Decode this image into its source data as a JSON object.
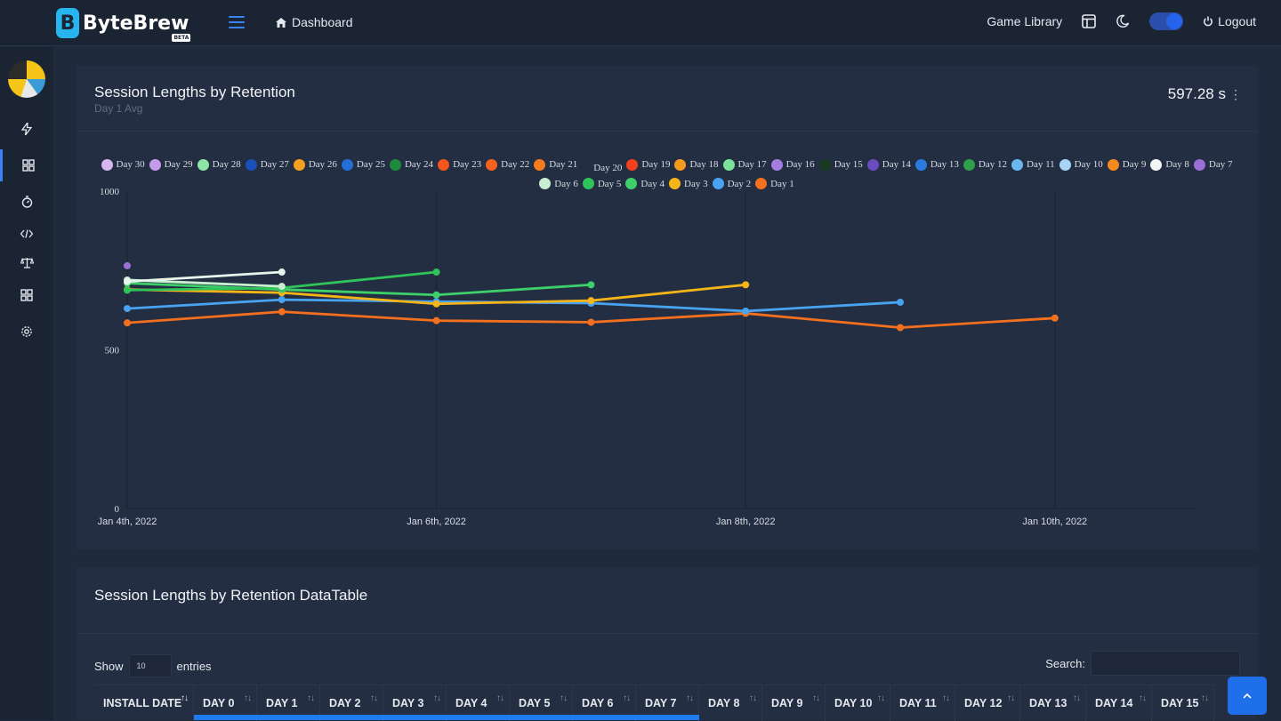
{
  "app": {
    "brand": "ByteBrew",
    "beta": "BETA"
  },
  "header": {
    "breadcrumb": "Dashboard",
    "game_library": "Game Library",
    "logout": "Logout"
  },
  "sidebar": {
    "icons": [
      "bolt-icon",
      "dashboard-icon",
      "stopwatch-icon",
      "code-icon",
      "balance-icon",
      "grid-icon",
      "settings-icon"
    ]
  },
  "chart_card": {
    "title": "Session Lengths by Retention",
    "subtitle": "Day 1 Avg",
    "value": "597.28 s"
  },
  "chart_data": {
    "type": "line",
    "ylim": [
      0,
      1000
    ],
    "yticks": [
      "1000",
      "500",
      "0"
    ],
    "x_tick_labels": [
      "Jan 4th, 2022",
      "Jan 6th, 2022",
      "Jan 8th, 2022",
      "Jan 10th, 2022"
    ],
    "x_dates": [
      "Jan 4th, 2022",
      "Jan 5th, 2022",
      "Jan 6th, 2022",
      "Jan 7th, 2022",
      "Jan 8th, 2022",
      "Jan 9th, 2022",
      "Jan 10th, 2022"
    ],
    "legend": [
      {
        "name": "Day 30",
        "color": "#d7b8ee"
      },
      {
        "name": "Day 29",
        "color": "#c59bea"
      },
      {
        "name": "Day 28",
        "color": "#8de6a6"
      },
      {
        "name": "Day 27",
        "color": "#1d4fb8"
      },
      {
        "name": "Day 26",
        "color": "#f4a020"
      },
      {
        "name": "Day 25",
        "color": "#2270d8"
      },
      {
        "name": "Day 24",
        "color": "#1e8a3d"
      },
      {
        "name": "Day 23",
        "color": "#f4541e"
      },
      {
        "name": "Day 22",
        "color": "#f4621e"
      },
      {
        "name": "Day 21",
        "color": "#f47c1e"
      },
      {
        "name": "Day 20",
        "color": ""
      },
      {
        "name": "Day 19",
        "color": "#f4401e"
      },
      {
        "name": "Day 18",
        "color": "#f49a1e"
      },
      {
        "name": "Day 17",
        "color": "#7be09a"
      },
      {
        "name": "Day 16",
        "color": "#a57de0"
      },
      {
        "name": "Day 15",
        "color": "#1a3a22"
      },
      {
        "name": "Day 14",
        "color": "#6a4bc0"
      },
      {
        "name": "Day 13",
        "color": "#2a7ae0"
      },
      {
        "name": "Day 12",
        "color": "#2ea04a"
      },
      {
        "name": "Day 11",
        "color": "#6bb8ef"
      },
      {
        "name": "Day 10",
        "color": "#a8d4f5"
      },
      {
        "name": "Day 9",
        "color": "#f48a1e"
      },
      {
        "name": "Day 8",
        "color": "#f2f6f2"
      },
      {
        "name": "Day 7",
        "color": "#9b6fd6"
      },
      {
        "name": "Day 6",
        "color": "#c8f0d0"
      },
      {
        "name": "Day 5",
        "color": "#2ec45a"
      },
      {
        "name": "Day 4",
        "color": "#3dd06a"
      },
      {
        "name": "Day 3",
        "color": "#f5b518"
      },
      {
        "name": "Day 2",
        "color": "#48a3f0"
      },
      {
        "name": "Day 1",
        "color": "#f4701e"
      }
    ],
    "series": [
      {
        "name": "Day 7",
        "color": "#9b6fd6",
        "x": [
          0
        ],
        "values": [
          765
        ]
      },
      {
        "name": "Day 8",
        "color": "#e8f5ea",
        "x": [
          0,
          1
        ],
        "values": [
          715,
          745
        ]
      },
      {
        "name": "Day 6",
        "color": "#c8f0d0",
        "x": [
          0,
          1
        ],
        "values": [
          720,
          700
        ]
      },
      {
        "name": "Day 5",
        "color": "#2ec45a",
        "x": [
          0,
          1,
          2
        ],
        "values": [
          688,
          695,
          745
        ]
      },
      {
        "name": "Day 4",
        "color": "#3dd06a",
        "x": [
          0,
          1,
          2,
          3
        ],
        "values": [
          710,
          690,
          673,
          705
        ]
      },
      {
        "name": "Day 3",
        "color": "#f5b518",
        "x": [
          0,
          1,
          2,
          3,
          4
        ],
        "values": [
          690,
          680,
          645,
          655,
          705
        ]
      },
      {
        "name": "Day 2",
        "color": "#48a3f0",
        "x": [
          0,
          1,
          2,
          3,
          4,
          5
        ],
        "values": [
          630,
          658,
          652,
          647,
          622,
          650
        ]
      },
      {
        "name": "Day 1",
        "color": "#f4701e",
        "x": [
          0,
          1,
          2,
          3,
          4,
          5,
          6
        ],
        "values": [
          585,
          620,
          592,
          587,
          615,
          570,
          600
        ]
      }
    ]
  },
  "table_card": {
    "title": "Session Lengths by Retention DataTable",
    "show": "Show",
    "entries_value": "10",
    "entries": "entries",
    "search": "Search:",
    "columns": [
      "INSTALL DATE",
      "DAY 0",
      "DAY 1",
      "DAY 2",
      "DAY 3",
      "DAY 4",
      "DAY 5",
      "DAY 6",
      "DAY 7",
      "DAY 8",
      "DAY 9",
      "DAY 10",
      "DAY 11",
      "DAY 12",
      "DAY 13",
      "DAY 14",
      "DAY 15"
    ]
  }
}
